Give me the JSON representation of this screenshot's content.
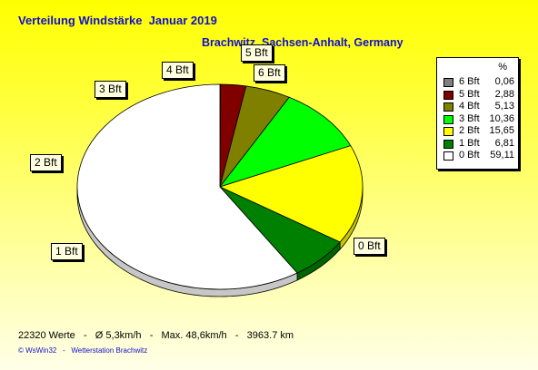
{
  "title": "Verteilung Windstärke  Januar 2019",
  "subtitle": "Brachwitz, Sachsen-Anhalt, Germany",
  "legend_unit": "%",
  "stats": "22320 Werte   -   Ø 5,3km/h   -   Max. 48,6km/h   -   3963.7 km",
  "footer": "© WsWin32   -   Wetterstation Brachwitz",
  "chart_data": {
    "type": "pie",
    "title": "Verteilung Windstärke  Januar 2019",
    "subtitle": "Brachwitz, Sachsen-Anhalt, Germany",
    "legend_position": "top-right",
    "slices": [
      {
        "label": "6 Bft",
        "value": 0.06,
        "value_text": "0,06",
        "color": "#808080"
      },
      {
        "label": "5 Bft",
        "value": 2.88,
        "value_text": "2,88",
        "color": "#800000"
      },
      {
        "label": "4 Bft",
        "value": 5.13,
        "value_text": "5,13",
        "color": "#808000"
      },
      {
        "label": "3 Bft",
        "value": 10.36,
        "value_text": "10,36",
        "color": "#00ff00"
      },
      {
        "label": "2 Bft",
        "value": 15.65,
        "value_text": "15,65",
        "color": "#ffff00"
      },
      {
        "label": "1 Bft",
        "value": 6.81,
        "value_text": "6,81",
        "color": "#008000"
      },
      {
        "label": "0 Bft",
        "value": 59.11,
        "value_text": "59,11",
        "color": "#ffffff"
      }
    ]
  }
}
